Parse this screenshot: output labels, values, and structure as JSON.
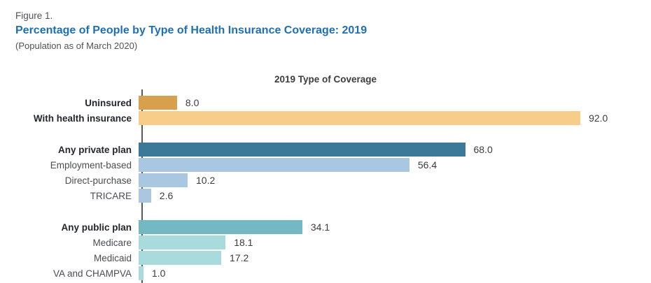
{
  "header": {
    "figure_label": "Figure 1.",
    "title": "Percentage of People by Type of Health Insurance Coverage: 2019",
    "subtitle": "(Population as of March 2020)"
  },
  "colors": {
    "title_blue": "#1E6FB4",
    "axis_gray": "#59595C",
    "uninsured_gold": "#D7A04C",
    "insured_light_gold": "#F8CD8A",
    "private_dark_blue": "#3C7897",
    "private_light_blue": "#A9C7E0",
    "public_teal": "#73B8C2",
    "public_light_teal": "#A9DBDD"
  },
  "chart_data": {
    "type": "bar",
    "orientation": "horizontal",
    "title": "2019 Type of Coverage",
    "xlabel": "",
    "ylabel": "",
    "xlim": [
      0,
      100
    ],
    "grid": false,
    "legend": "none",
    "value_format": "one-decimal",
    "groups": [
      {
        "name": "coverage-status",
        "rows": [
          {
            "label": "Uninsured",
            "value": 8.0,
            "bold": true,
            "color": "#D7A04C"
          },
          {
            "label": "With health insurance",
            "value": 92.0,
            "bold": true,
            "color": "#F8CD8A"
          }
        ]
      },
      {
        "name": "private-plans",
        "rows": [
          {
            "label": "Any private plan",
            "value": 68.0,
            "bold": true,
            "color": "#3C7897"
          },
          {
            "label": "Employment-based",
            "value": 56.4,
            "bold": false,
            "color": "#A9C7E0"
          },
          {
            "label": "Direct-purchase",
            "value": 10.2,
            "bold": false,
            "color": "#A9C7E0"
          },
          {
            "label": "TRICARE",
            "value": 2.6,
            "bold": false,
            "color": "#A9C7E0"
          }
        ]
      },
      {
        "name": "public-plans",
        "rows": [
          {
            "label": "Any public plan",
            "value": 34.1,
            "bold": true,
            "color": "#73B8C2"
          },
          {
            "label": "Medicare",
            "value": 18.1,
            "bold": false,
            "color": "#A9DBDD"
          },
          {
            "label": "Medicaid",
            "value": 17.2,
            "bold": false,
            "color": "#A9DBDD"
          },
          {
            "label": "VA and CHAMPVA",
            "value": 1.0,
            "bold": false,
            "color": "#A9DBDD"
          }
        ]
      }
    ]
  }
}
